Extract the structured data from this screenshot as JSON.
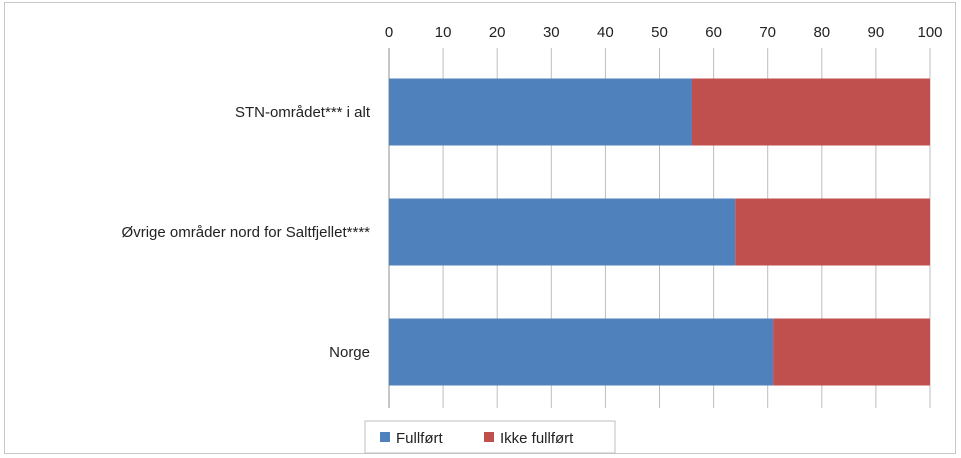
{
  "chart_data": {
    "type": "bar",
    "orientation": "horizontal",
    "stacked": true,
    "categories": [
      "STN-området*** i alt",
      "Øvrige områder nord for Saltfjellet****",
      "Norge"
    ],
    "series": [
      {
        "name": "Fullført",
        "values": [
          56,
          64,
          71
        ],
        "color": "#4f81bd"
      },
      {
        "name": "Ikke fullført",
        "values": [
          44,
          36,
          29
        ],
        "color": "#c0504d"
      }
    ],
    "xlim": [
      0,
      100
    ],
    "xticks": [
      0,
      10,
      20,
      30,
      40,
      50,
      60,
      70,
      80,
      90,
      100
    ],
    "x_axis_position": "top",
    "grid": true,
    "legend_position": "bottom"
  }
}
